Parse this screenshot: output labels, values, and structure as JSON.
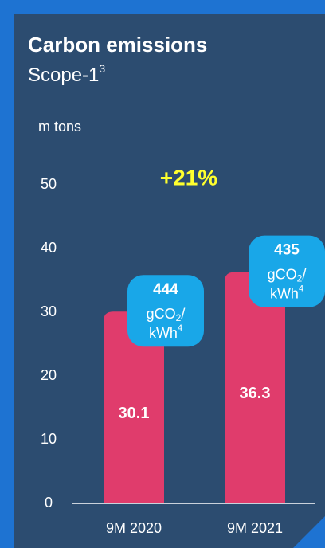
{
  "chart_data": {
    "type": "bar",
    "title": "Carbon emissions",
    "subtitle": "Scope-1",
    "subtitle_footnote": "3",
    "y_label": "m tons",
    "annotation": "+21%",
    "categories": [
      "9M 2020",
      "9M 2021"
    ],
    "values": [
      30.1,
      36.3
    ],
    "color": "#e03c6c",
    "ylim": [
      0,
      50
    ],
    "yticks": [
      0,
      10,
      20,
      30,
      40,
      50
    ],
    "intensity": {
      "values": [
        444,
        435
      ],
      "unit": "gCO",
      "unit_subscript": "2",
      "unit_slash": "/",
      "unit_second": "kWh",
      "unit_footnote": "4",
      "color": "#19a7e8"
    }
  }
}
